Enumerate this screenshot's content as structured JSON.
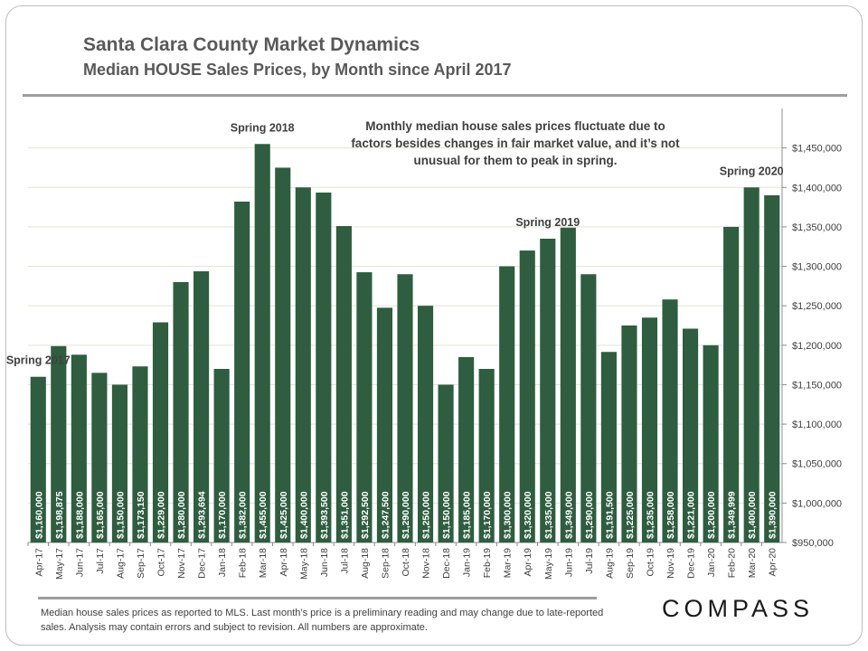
{
  "header": {
    "title": "Santa Clara County Market Dynamics",
    "subtitle": "Median HOUSE Sales Prices, by Month since April 2017"
  },
  "annotation": {
    "text": "Monthly median house sales prices fluctuate due to factors besides changes in fair market value, and it’s not unusual for them to peak in spring."
  },
  "footer": {
    "note": "Median house sales prices as reported to MLS. Last month’s price is a preliminary reading and may change due to late-reported sales. Analysis may contain errors and subject to revision. All numbers are approximate.",
    "logo": "COMPASS"
  },
  "chart_data": {
    "type": "bar",
    "title": "Santa Clara County Market Dynamics",
    "subtitle": "Median HOUSE Sales Prices, by Month since April 2017",
    "categories": [
      "Apr-17",
      "May-17",
      "Jun-17",
      "Jul-17",
      "Aug-17",
      "Sep-17",
      "Oct-17",
      "Nov-17",
      "Dec-17",
      "Jan-18",
      "Feb-18",
      "Mar-18",
      "Apr-18",
      "May-18",
      "Jun-18",
      "Jul-18",
      "Aug-18",
      "Sep-18",
      "Oct-18",
      "Nov-18",
      "Dec-18",
      "Jan-19",
      "Feb-19",
      "Mar-19",
      "Apr-19",
      "May-19",
      "Jun-19",
      "Jul-19",
      "Aug-19",
      "Sep-19",
      "Oct-19",
      "Nov-19",
      "Dec-19",
      "Jan-20",
      "Feb-20",
      "Mar-20",
      "Apr-20"
    ],
    "values": [
      1160000,
      1198875,
      1188000,
      1165000,
      1150000,
      1173150,
      1229000,
      1280000,
      1293694,
      1170000,
      1382000,
      1455000,
      1425000,
      1400000,
      1393500,
      1351000,
      1292500,
      1247500,
      1290000,
      1250000,
      1150000,
      1185000,
      1170000,
      1300000,
      1320000,
      1335000,
      1349000,
      1290000,
      1191500,
      1225000,
      1235000,
      1258000,
      1221000,
      1200000,
      1349999,
      1400000,
      1390000
    ],
    "value_labels": [
      "$1,160,000",
      "$1,198,875",
      "$1,188,000",
      "$1,165,000",
      "$1,150,000",
      "$1,173,150",
      "$1,229,000",
      "$1,280,000",
      "$1,293,694",
      "$1,170,000",
      "$1,382,000",
      "$1,455,000",
      "$1,425,000",
      "$1,400,000",
      "$1,393,500",
      "$1,351,000",
      "$1,292,500",
      "$1,247,500",
      "$1,290,000",
      "$1,250,000",
      "$1,150,000",
      "$1,185,000",
      "$1,170,000",
      "$1,300,000",
      "$1,320,000",
      "$1,335,000",
      "$1,349,000",
      "$1,290,000",
      "$1,191,500",
      "$1,225,000",
      "$1,235,000",
      "$1,258,000",
      "$1,221,000",
      "$1,200,000",
      "$1,349,999",
      "$1,400,000",
      "$1,390,000"
    ],
    "ylim": [
      950000,
      1500000
    ],
    "y_axis_side": "right",
    "y_ticks": [
      950000,
      1000000,
      1050000,
      1100000,
      1150000,
      1200000,
      1250000,
      1300000,
      1350000,
      1400000,
      1450000
    ],
    "y_tick_labels": [
      "$950,000",
      "$1,000,000",
      "$1,050,000",
      "$1,100,000",
      "$1,150,000",
      "$1,200,000",
      "$1,250,000",
      "$1,300,000",
      "$1,350,000",
      "$1,400,000",
      "$1,450,000"
    ],
    "grid": true,
    "legend": "none",
    "bar_color": "#2e5d3f",
    "annotations": [
      {
        "text": "Spring 2017",
        "category_index": 0
      },
      {
        "text": "Spring 2018",
        "category_index": 11
      },
      {
        "text": "Spring 2019",
        "category_index": 25
      },
      {
        "text": "Spring 2020",
        "category_index": 35
      }
    ]
  }
}
